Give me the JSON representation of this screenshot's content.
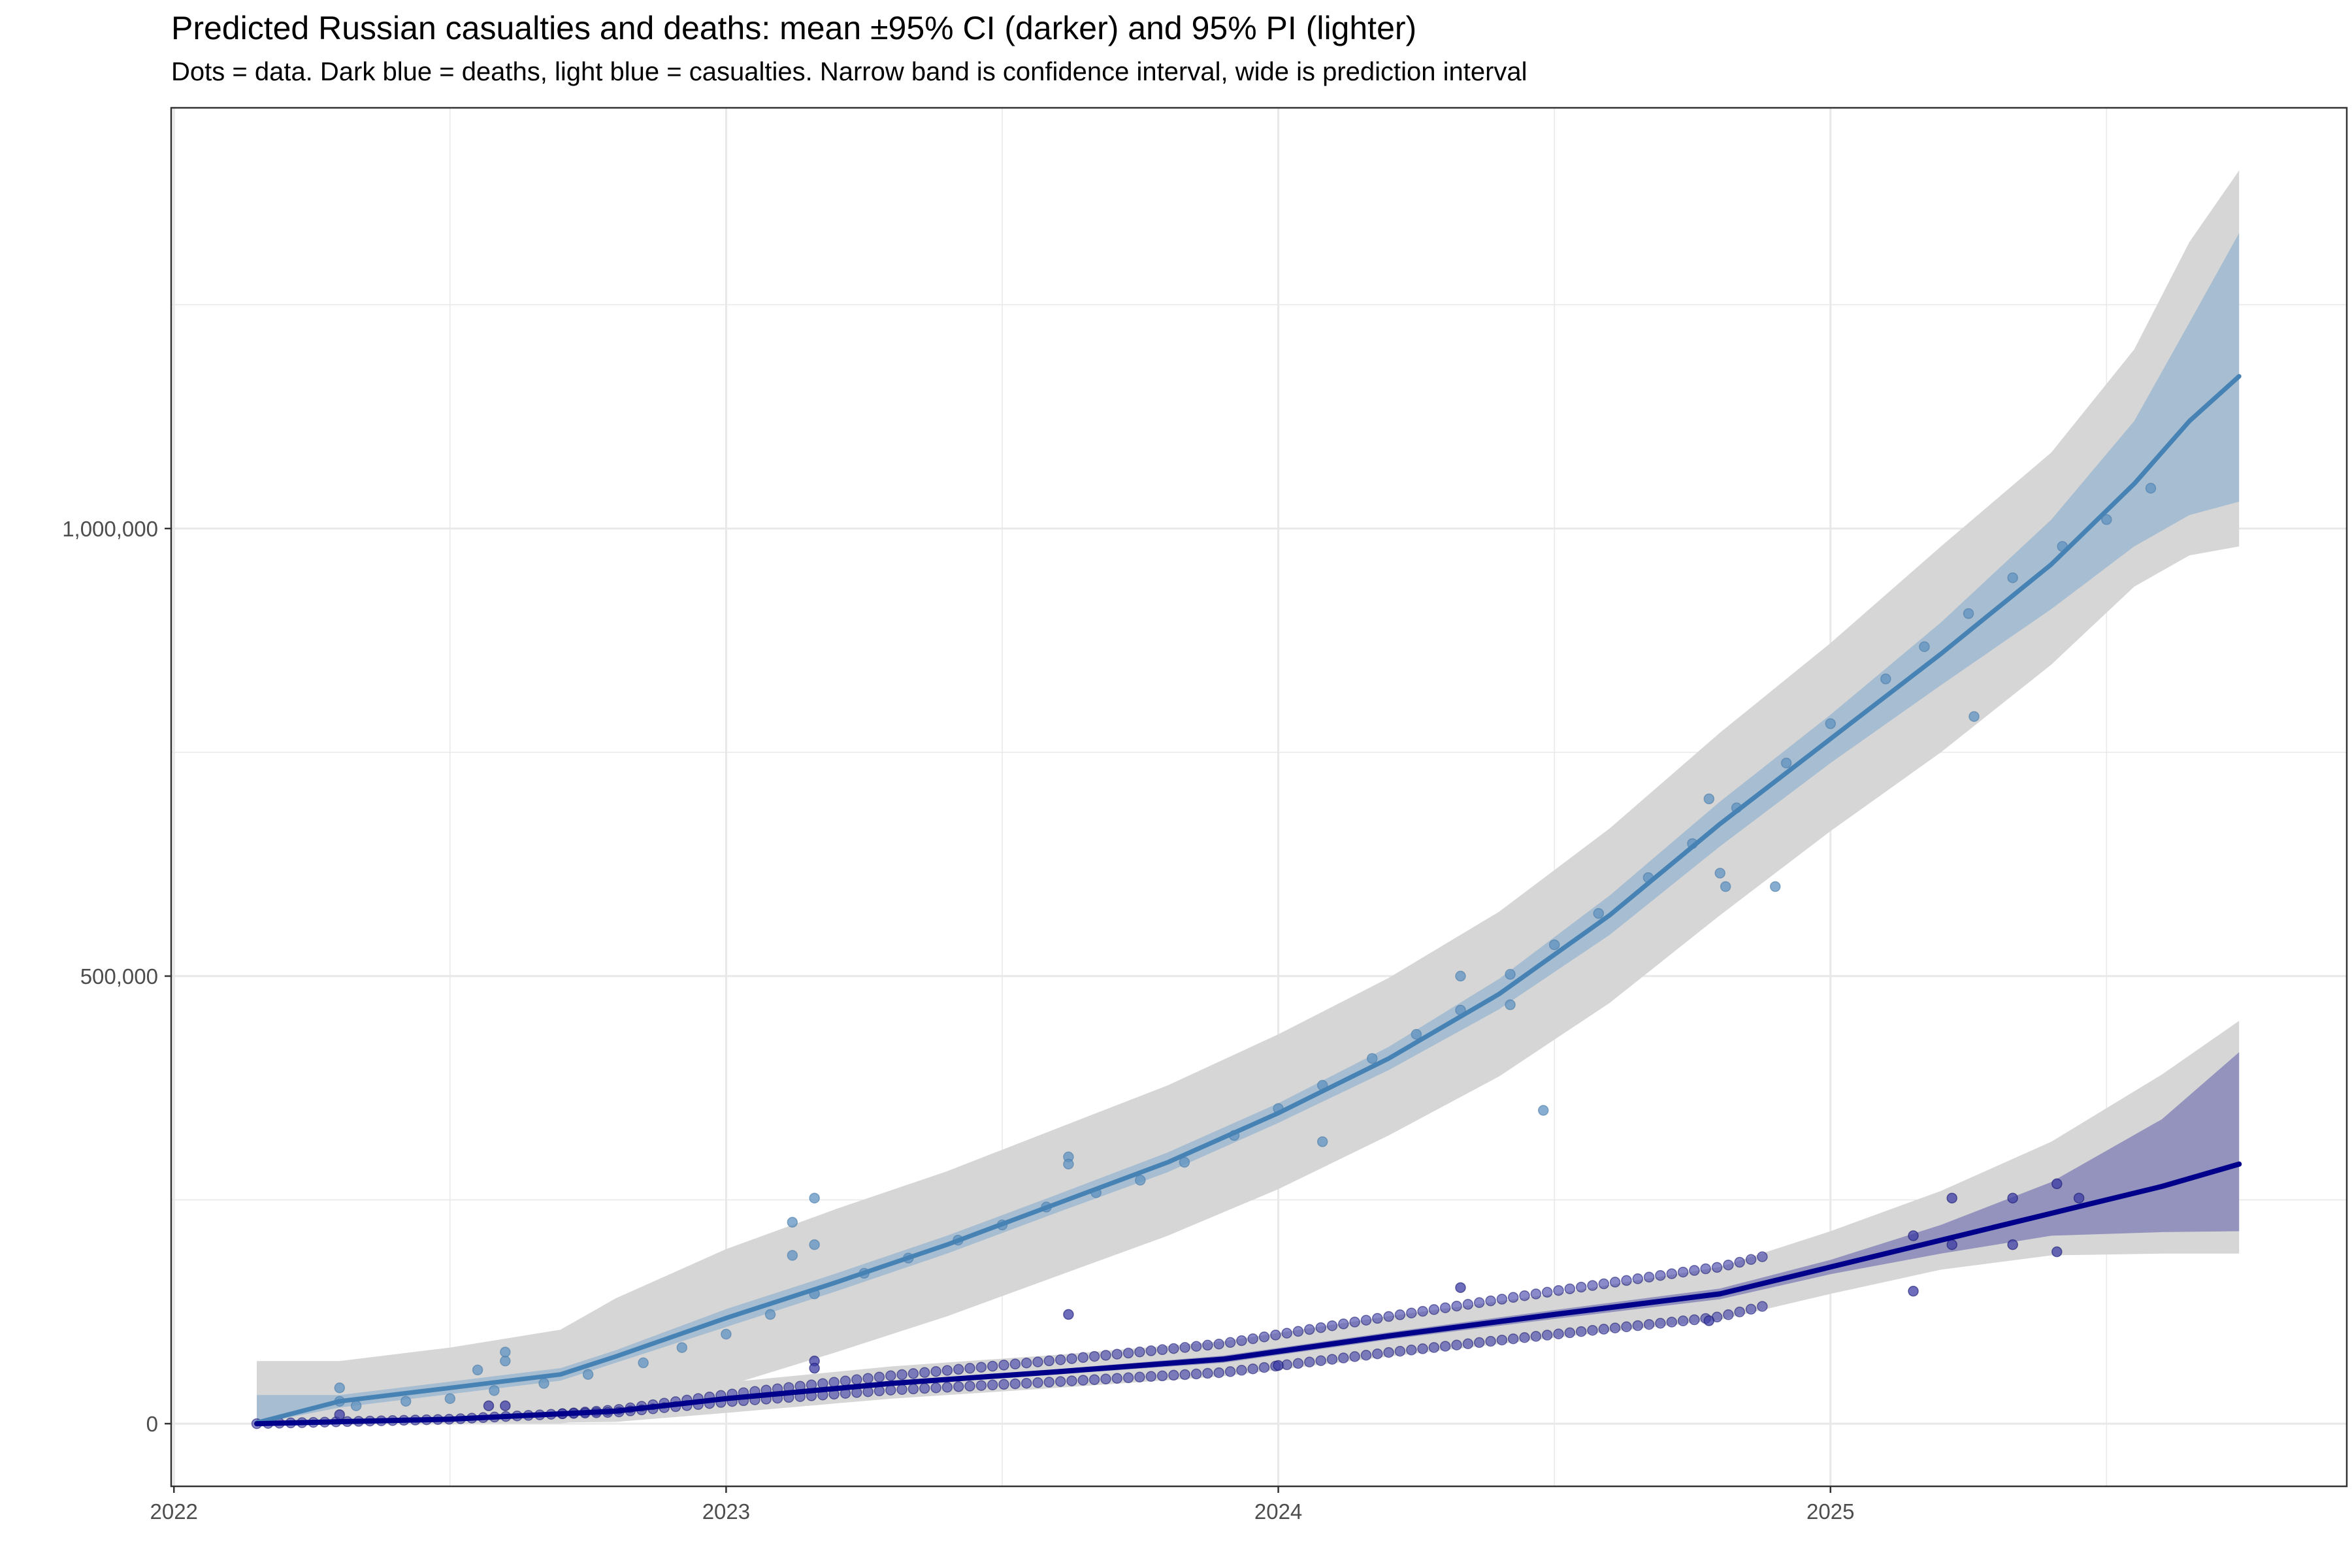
{
  "chart_data": {
    "type": "line",
    "title": "Predicted Russian casualties and deaths: mean ±95% CI (darker) and 95% PI (lighter)",
    "subtitle": "Dots = data. Dark blue = deaths, light blue = casualties. Narrow band is confidence interval, wide is prediction interval",
    "xlabel": "",
    "ylabel": "",
    "xlim": [
      2021.995,
      2025.935
    ],
    "ylim": [
      -70000,
      1470000
    ],
    "x_ticks": [
      2022,
      2023,
      2024,
      2025
    ],
    "x_tick_labels": [
      "2022",
      "2023",
      "2024",
      "2025"
    ],
    "y_ticks": [
      0,
      500000,
      1000000
    ],
    "y_tick_labels": [
      "0",
      "500,000",
      "1,000,000"
    ],
    "y_minor_ticks": [
      250000,
      750000,
      1250000
    ],
    "grid": true,
    "legend": "none",
    "colors": {
      "casualties_line": "#4682b4",
      "casualties_ci": "#9fb9d0",
      "deaths_line": "#00008b",
      "deaths_ci": "#8787b9",
      "pred_interval": "#d6d6d6",
      "casualties_points": "#5f93c0",
      "deaths_points": "#3c3ca6",
      "grid": "#e8e8e8"
    },
    "series": [
      {
        "key": "casualties_fit",
        "x": [
          2022.15,
          2022.3,
          2022.5,
          2022.7,
          2022.8,
          2023.0,
          2023.2,
          2023.4,
          2023.6,
          2023.8,
          2024.0,
          2024.2,
          2024.4,
          2024.6,
          2024.8,
          2025.0,
          2025.2,
          2025.4,
          2025.55,
          2025.65,
          2025.74
        ],
        "mean": [
          1000,
          25000,
          40000,
          55000,
          75000,
          118000,
          158000,
          200000,
          246000,
          292000,
          347000,
          408000,
          480000,
          568000,
          670000,
          765000,
          860000,
          960000,
          1050000,
          1120000,
          1170000
        ],
        "ci_lower": [
          0,
          18000,
          33000,
          48000,
          68000,
          108000,
          148000,
          190000,
          236000,
          281000,
          336000,
          395000,
          463000,
          546000,
          645000,
          738000,
          825000,
          910000,
          980000,
          1015000,
          1030000
        ],
        "ci_upper": [
          32000,
          32000,
          47000,
          62000,
          82000,
          128000,
          168000,
          210000,
          256000,
          303000,
          358000,
          421000,
          497000,
          590000,
          695000,
          792000,
          895000,
          1010000,
          1120000,
          1230000,
          1330000
        ],
        "pi_lower": [
          0,
          0,
          0,
          0,
          10000,
          42000,
          80000,
          120000,
          165000,
          210000,
          262000,
          322000,
          388000,
          470000,
          568000,
          662000,
          750000,
          848000,
          935000,
          970000,
          980000
        ],
        "pi_upper": [
          70000,
          70000,
          85000,
          105000,
          140000,
          195000,
          240000,
          282000,
          330000,
          378000,
          435000,
          498000,
          572000,
          665000,
          772000,
          872000,
          980000,
          1085000,
          1200000,
          1320000,
          1400000
        ]
      },
      {
        "key": "deaths_fit",
        "x": [
          2022.15,
          2022.5,
          2022.8,
          2023.0,
          2023.3,
          2023.6,
          2023.9,
          2024.2,
          2024.5,
          2024.8,
          2025.0,
          2025.2,
          2025.4,
          2025.6,
          2025.74
        ],
        "mean": [
          0,
          5000,
          14000,
          28000,
          45000,
          58000,
          72000,
          98000,
          122000,
          145000,
          175000,
          205000,
          235000,
          265000,
          290000
        ],
        "ci_lower": [
          0,
          3000,
          12000,
          25000,
          42000,
          55000,
          68000,
          94000,
          117000,
          139000,
          167000,
          190000,
          210000,
          214000,
          215000
        ],
        "ci_upper": [
          2000,
          7000,
          16000,
          31000,
          48000,
          61000,
          76000,
          102000,
          127000,
          151000,
          183000,
          222000,
          270000,
          340000,
          415000
        ],
        "pi_lower": [
          0,
          0,
          2000,
          12000,
          28000,
          40000,
          53000,
          75000,
          96000,
          116000,
          145000,
          172000,
          188000,
          190000,
          190000
        ],
        "pi_upper": [
          8000,
          15000,
          28000,
          46000,
          64000,
          77000,
          92000,
          120000,
          145000,
          175000,
          215000,
          260000,
          315000,
          390000,
          450000
        ]
      }
    ],
    "casualty_points": [
      [
        2022.3,
        40000
      ],
      [
        2022.3,
        25000
      ],
      [
        2022.33,
        20000
      ],
      [
        2022.42,
        25000
      ],
      [
        2022.5,
        28000
      ],
      [
        2022.55,
        60000
      ],
      [
        2022.58,
        37000
      ],
      [
        2022.6,
        70000
      ],
      [
        2022.6,
        80000
      ],
      [
        2022.67,
        45000
      ],
      [
        2022.75,
        55000
      ],
      [
        2022.85,
        68000
      ],
      [
        2022.92,
        85000
      ],
      [
        2023.0,
        100000
      ],
      [
        2023.08,
        122000
      ],
      [
        2023.12,
        188000
      ],
      [
        2023.12,
        225000
      ],
      [
        2023.16,
        200000
      ],
      [
        2023.16,
        145000
      ],
      [
        2023.16,
        252000
      ],
      [
        2023.25,
        168000
      ],
      [
        2023.33,
        185000
      ],
      [
        2023.42,
        205000
      ],
      [
        2023.5,
        222000
      ],
      [
        2023.58,
        242000
      ],
      [
        2023.62,
        298000
      ],
      [
        2023.62,
        290000
      ],
      [
        2023.67,
        258000
      ],
      [
        2023.75,
        272000
      ],
      [
        2023.83,
        292000
      ],
      [
        2023.92,
        322000
      ],
      [
        2024.0,
        352000
      ],
      [
        2024.08,
        378000
      ],
      [
        2024.08,
        315000
      ],
      [
        2024.17,
        408000
      ],
      [
        2024.25,
        435000
      ],
      [
        2024.33,
        462000
      ],
      [
        2024.33,
        500000
      ],
      [
        2024.42,
        468000
      ],
      [
        2024.42,
        502000
      ],
      [
        2024.48,
        350000
      ],
      [
        2024.5,
        535000
      ],
      [
        2024.58,
        570000
      ],
      [
        2024.67,
        610000
      ],
      [
        2024.75,
        648000
      ],
      [
        2024.78,
        698000
      ],
      [
        2024.8,
        615000
      ],
      [
        2024.81,
        600000
      ],
      [
        2024.83,
        688000
      ],
      [
        2024.9,
        600000
      ],
      [
        2024.92,
        738000
      ],
      [
        2025.0,
        782000
      ],
      [
        2025.1,
        832000
      ],
      [
        2025.17,
        868000
      ],
      [
        2025.25,
        905000
      ],
      [
        2025.26,
        790000
      ],
      [
        2025.33,
        945000
      ],
      [
        2025.42,
        980000
      ],
      [
        2025.5,
        1010000
      ],
      [
        2025.58,
        1045000
      ]
    ],
    "death_points": [
      [
        2022.3,
        10000
      ],
      [
        2022.57,
        20000
      ],
      [
        2022.6,
        20000
      ],
      [
        2023.16,
        70000
      ],
      [
        2023.16,
        62000
      ],
      [
        2023.62,
        122000
      ],
      [
        2024.0,
        65000
      ],
      [
        2024.33,
        152000
      ],
      [
        2024.78,
        115000
      ],
      [
        2025.15,
        210000
      ],
      [
        2025.15,
        148000
      ],
      [
        2025.22,
        252000
      ],
      [
        2025.22,
        200000
      ],
      [
        2025.33,
        252000
      ],
      [
        2025.33,
        200000
      ],
      [
        2025.41,
        268000
      ],
      [
        2025.41,
        192000
      ],
      [
        2025.45,
        252000
      ]
    ]
  }
}
